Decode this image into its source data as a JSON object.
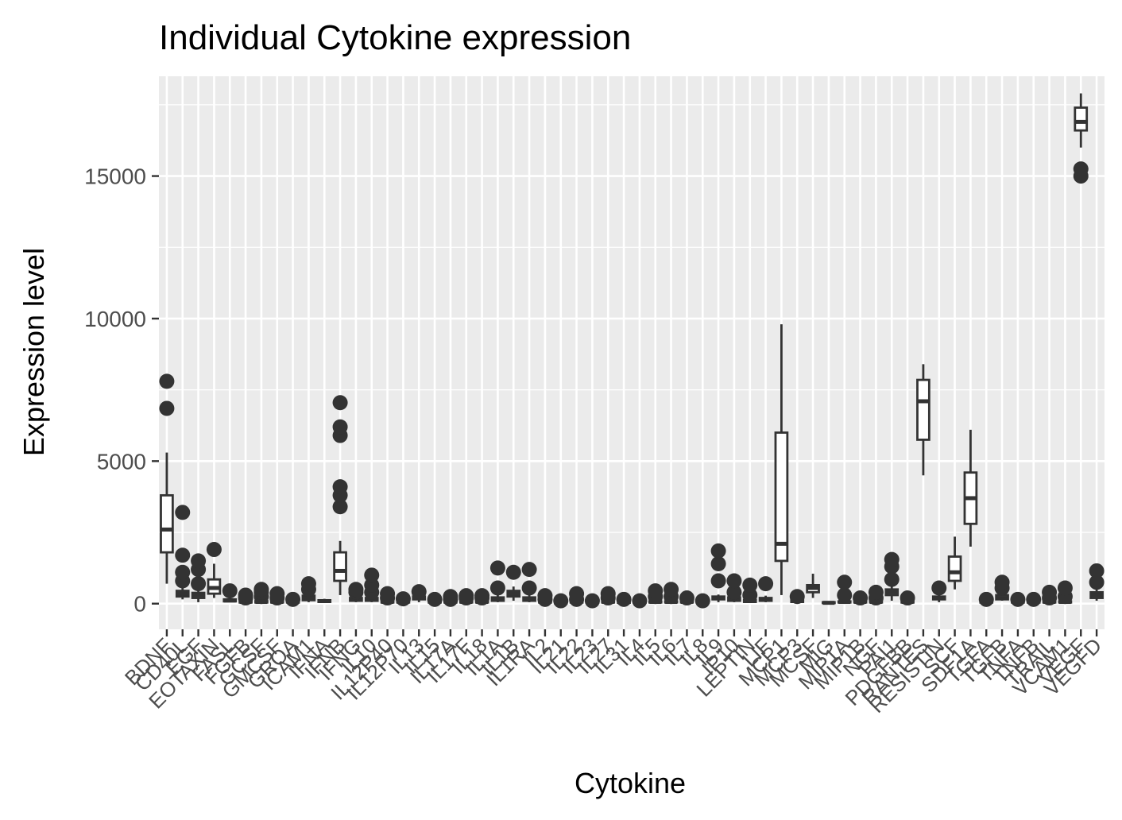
{
  "chart_data": {
    "type": "boxplot",
    "title": "Individual Cytokine expression",
    "xlabel": "Cytokine",
    "ylabel": "Expression level",
    "ylim": [
      -900,
      18500
    ],
    "yticks": [
      0,
      5000,
      10000,
      15000
    ],
    "ytick_labels": [
      "0",
      "5000",
      "10000",
      "15000"
    ],
    "grid": true,
    "panel_background": "#ebebeb",
    "grid_color": "#ffffff",
    "box_color": "#333333",
    "categories": [
      "BDNF",
      "CD40L",
      "EGF",
      "EOTAXIN",
      "FASL",
      "FGFB",
      "GCSF",
      "GMCSF",
      "GROA",
      "ICAM1",
      "IFNA",
      "IFNB",
      "IFNG",
      "IL10",
      "IL12P40",
      "IL12P70",
      "IL13",
      "IL15",
      "IL17A",
      "IL17F",
      "IL18",
      "IL1A",
      "IL1B",
      "IL1RA",
      "IL2",
      "IL21",
      "IL22",
      "IL23",
      "IL27",
      "IL31",
      "IL4",
      "IL5",
      "IL6",
      "IL7",
      "IL8",
      "IL9",
      "IP10",
      "LEPTIN",
      "LIF",
      "MCP1",
      "MCP3",
      "MCSF",
      "MIG",
      "MIP1A",
      "MIP1B",
      "NGF",
      "PAI1",
      "PDGFBB",
      "RANTES",
      "RESISTIN",
      "SCF",
      "SDF1A",
      "TGFA",
      "TGFB",
      "TNFA",
      "TNFB",
      "TRAIL",
      "VCAM1",
      "VEGF",
      "VEGFD"
    ],
    "boxes": [
      {
        "name": "BDNF",
        "whisker_low": 700,
        "q1": 1800,
        "median": 2600,
        "q3": 3800,
        "whisker_high": 5300,
        "outliers": [
          6850,
          7800
        ]
      },
      {
        "name": "CD40L",
        "whisker_low": 150,
        "q1": 250,
        "median": 350,
        "q3": 450,
        "whisker_high": 650,
        "outliers": [
          800,
          1100,
          1700,
          3200
        ]
      },
      {
        "name": "EGF",
        "whisker_low": 50,
        "q1": 200,
        "median": 300,
        "q3": 380,
        "whisker_high": 500,
        "outliers": [
          700,
          1200,
          1500
        ]
      },
      {
        "name": "EOTAXIN",
        "whisker_low": 200,
        "q1": 350,
        "median": 550,
        "q3": 850,
        "whisker_high": 1400,
        "outliers": [
          1900
        ]
      },
      {
        "name": "FASL",
        "whisker_low": 50,
        "q1": 80,
        "median": 110,
        "q3": 150,
        "whisker_high": 250,
        "outliers": [
          450
        ]
      },
      {
        "name": "FGFB",
        "whisker_low": 20,
        "q1": 40,
        "median": 60,
        "q3": 80,
        "whisker_high": 120,
        "outliers": [
          200,
          300
        ]
      },
      {
        "name": "GCSF",
        "whisker_low": 20,
        "q1": 40,
        "median": 60,
        "q3": 90,
        "whisker_high": 130,
        "outliers": [
          250,
          400,
          500
        ]
      },
      {
        "name": "GMCSF",
        "whisker_low": 20,
        "q1": 40,
        "median": 60,
        "q3": 90,
        "whisker_high": 130,
        "outliers": [
          200,
          350
        ]
      },
      {
        "name": "GROA",
        "whisker_low": 20,
        "q1": 40,
        "median": 60,
        "q3": 80,
        "whisker_high": 120,
        "outliers": [
          150
        ]
      },
      {
        "name": "ICAM1",
        "whisker_low": 50,
        "q1": 120,
        "median": 200,
        "q3": 280,
        "whisker_high": 400,
        "outliers": [
          500,
          700
        ]
      },
      {
        "name": "IFNA",
        "whisker_low": 30,
        "q1": 60,
        "median": 90,
        "q3": 120,
        "whisker_high": 170,
        "outliers": []
      },
      {
        "name": "IFNB",
        "whisker_low": 300,
        "q1": 800,
        "median": 1150,
        "q3": 1800,
        "whisker_high": 2200,
        "outliers": [
          3400,
          3800,
          4100,
          5900,
          6200,
          7050
        ]
      },
      {
        "name": "IFNG",
        "whisker_low": 50,
        "q1": 100,
        "median": 150,
        "q3": 200,
        "whisker_high": 300,
        "outliers": [
          400,
          500
        ]
      },
      {
        "name": "IL10",
        "whisker_low": 50,
        "q1": 100,
        "median": 150,
        "q3": 200,
        "whisker_high": 300,
        "outliers": [
          400,
          650,
          1000
        ]
      },
      {
        "name": "IL12P40",
        "whisker_low": 20,
        "q1": 40,
        "median": 60,
        "q3": 90,
        "whisker_high": 130,
        "outliers": [
          200,
          350
        ]
      },
      {
        "name": "IL12P70",
        "whisker_low": 20,
        "q1": 40,
        "median": 60,
        "q3": 80,
        "whisker_high": 110,
        "outliers": [
          170
        ]
      },
      {
        "name": "IL13",
        "whisker_low": 50,
        "q1": 150,
        "median": 200,
        "q3": 250,
        "whisker_high": 320,
        "outliers": [
          420
        ]
      },
      {
        "name": "IL15",
        "whisker_low": 20,
        "q1": 40,
        "median": 60,
        "q3": 80,
        "whisker_high": 110,
        "outliers": [
          150
        ]
      },
      {
        "name": "IL17A",
        "whisker_low": 20,
        "q1": 40,
        "median": 60,
        "q3": 80,
        "whisker_high": 110,
        "outliers": [
          150,
          250
        ]
      },
      {
        "name": "IL17F",
        "whisker_low": 20,
        "q1": 40,
        "median": 60,
        "q3": 80,
        "whisker_high": 110,
        "outliers": [
          200,
          280
        ]
      },
      {
        "name": "IL18",
        "whisker_low": 20,
        "q1": 40,
        "median": 60,
        "q3": 80,
        "whisker_high": 110,
        "outliers": [
          200,
          280
        ]
      },
      {
        "name": "IL1A",
        "whisker_low": 50,
        "q1": 100,
        "median": 150,
        "q3": 220,
        "whisker_high": 300,
        "outliers": [
          550,
          1250
        ]
      },
      {
        "name": "IL1B",
        "whisker_low": 100,
        "q1": 250,
        "median": 350,
        "q3": 450,
        "whisker_high": 600,
        "outliers": [
          1100
        ]
      },
      {
        "name": "IL1RA",
        "whisker_low": 50,
        "q1": 100,
        "median": 150,
        "q3": 220,
        "whisker_high": 300,
        "outliers": [
          550,
          1200
        ]
      },
      {
        "name": "IL2",
        "whisker_low": 20,
        "q1": 40,
        "median": 60,
        "q3": 80,
        "whisker_high": 110,
        "outliers": [
          150,
          280
        ]
      },
      {
        "name": "IL21",
        "whisker_low": 10,
        "q1": 20,
        "median": 30,
        "q3": 40,
        "whisker_high": 60,
        "outliers": [
          100
        ]
      },
      {
        "name": "IL22",
        "whisker_low": 20,
        "q1": 40,
        "median": 60,
        "q3": 80,
        "whisker_high": 110,
        "outliers": [
          150,
          350
        ]
      },
      {
        "name": "IL23",
        "whisker_low": 20,
        "q1": 30,
        "median": 40,
        "q3": 60,
        "whisker_high": 80,
        "outliers": [
          100
        ]
      },
      {
        "name": "IL27",
        "whisker_low": 20,
        "q1": 40,
        "median": 60,
        "q3": 80,
        "whisker_high": 110,
        "outliers": [
          200,
          350
        ]
      },
      {
        "name": "IL31",
        "whisker_low": 20,
        "q1": 30,
        "median": 40,
        "q3": 60,
        "whisker_high": 80,
        "outliers": [
          150
        ]
      },
      {
        "name": "IL4",
        "whisker_low": 20,
        "q1": 30,
        "median": 40,
        "q3": 60,
        "whisker_high": 80,
        "outliers": [
          100
        ]
      },
      {
        "name": "IL5",
        "whisker_low": 20,
        "q1": 40,
        "median": 60,
        "q3": 80,
        "whisker_high": 110,
        "outliers": [
          250,
          450
        ]
      },
      {
        "name": "IL6",
        "whisker_low": 20,
        "q1": 40,
        "median": 60,
        "q3": 80,
        "whisker_high": 110,
        "outliers": [
          250,
          500
        ]
      },
      {
        "name": "IL7",
        "whisker_low": 20,
        "q1": 40,
        "median": 60,
        "q3": 80,
        "whisker_high": 110,
        "outliers": [
          200
        ]
      },
      {
        "name": "IL8",
        "whisker_low": 20,
        "q1": 30,
        "median": 40,
        "q3": 60,
        "whisker_high": 80,
        "outliers": [
          100
        ]
      },
      {
        "name": "IL9",
        "whisker_low": 50,
        "q1": 150,
        "median": 200,
        "q3": 250,
        "whisker_high": 320,
        "outliers": [
          800,
          1400,
          1850
        ]
      },
      {
        "name": "IP10",
        "whisker_low": 50,
        "q1": 100,
        "median": 150,
        "q3": 220,
        "whisker_high": 300,
        "outliers": [
          400,
          800
        ]
      },
      {
        "name": "LEPTIN",
        "whisker_low": 30,
        "q1": 60,
        "median": 90,
        "q3": 130,
        "whisker_high": 180,
        "outliers": [
          300,
          650
        ]
      },
      {
        "name": "LIF",
        "whisker_low": 50,
        "q1": 100,
        "median": 150,
        "q3": 200,
        "whisker_high": 280,
        "outliers": [
          700
        ]
      },
      {
        "name": "MCP1",
        "whisker_low": 300,
        "q1": 1500,
        "median": 2100,
        "q3": 6000,
        "whisker_high": 9800,
        "outliers": []
      },
      {
        "name": "MCP3",
        "whisker_low": 30,
        "q1": 60,
        "median": 90,
        "q3": 130,
        "whisker_high": 180,
        "outliers": [
          250
        ]
      },
      {
        "name": "MCSF",
        "whisker_low": 200,
        "q1": 400,
        "median": 550,
        "q3": 650,
        "whisker_high": 1050,
        "outliers": []
      },
      {
        "name": "MIG",
        "whisker_low": 10,
        "q1": 20,
        "median": 30,
        "q3": 50,
        "whisker_high": 80,
        "outliers": []
      },
      {
        "name": "MIP1A",
        "whisker_low": 20,
        "q1": 40,
        "median": 60,
        "q3": 80,
        "whisker_high": 110,
        "outliers": [
          300,
          750
        ]
      },
      {
        "name": "MIP1B",
        "whisker_low": 20,
        "q1": 40,
        "median": 60,
        "q3": 80,
        "whisker_high": 110,
        "outliers": [
          200
        ]
      },
      {
        "name": "NGF",
        "whisker_low": 20,
        "q1": 40,
        "median": 60,
        "q3": 80,
        "whisker_high": 110,
        "outliers": [
          200,
          400
        ]
      },
      {
        "name": "PAI1",
        "whisker_low": 100,
        "q1": 300,
        "median": 400,
        "q3": 500,
        "whisker_high": 650,
        "outliers": [
          850,
          1300,
          1550
        ]
      },
      {
        "name": "PDGFBB",
        "whisker_low": 20,
        "q1": 40,
        "median": 60,
        "q3": 80,
        "whisker_high": 110,
        "outliers": [
          200
        ]
      },
      {
        "name": "RANTES",
        "whisker_low": 4500,
        "q1": 5750,
        "median": 7100,
        "q3": 7850,
        "whisker_high": 8400,
        "outliers": []
      },
      {
        "name": "RESISTIN",
        "whisker_low": 50,
        "q1": 150,
        "median": 200,
        "q3": 250,
        "whisker_high": 320,
        "outliers": [
          550
        ]
      },
      {
        "name": "SCF",
        "whisker_low": 500,
        "q1": 800,
        "median": 1100,
        "q3": 1650,
        "whisker_high": 2350,
        "outliers": []
      },
      {
        "name": "SDF1A",
        "whisker_low": 2000,
        "q1": 2800,
        "median": 3700,
        "q3": 4600,
        "whisker_high": 6100,
        "outliers": []
      },
      {
        "name": "TGFA",
        "whisker_low": 20,
        "q1": 40,
        "median": 60,
        "q3": 80,
        "whisker_high": 110,
        "outliers": [
          150
        ]
      },
      {
        "name": "TGFB",
        "whisker_low": 100,
        "q1": 150,
        "median": 200,
        "q3": 300,
        "whisker_high": 400,
        "outliers": [
          550,
          750
        ]
      },
      {
        "name": "TNFA",
        "whisker_low": 20,
        "q1": 40,
        "median": 60,
        "q3": 80,
        "whisker_high": 110,
        "outliers": [
          150
        ]
      },
      {
        "name": "TNFB",
        "whisker_low": 20,
        "q1": 40,
        "median": 60,
        "q3": 80,
        "whisker_high": 110,
        "outliers": [
          150
        ]
      },
      {
        "name": "TRAIL",
        "whisker_low": 20,
        "q1": 40,
        "median": 60,
        "q3": 80,
        "whisker_high": 110,
        "outliers": [
          200,
          400
        ]
      },
      {
        "name": "VCAM1",
        "whisker_low": 20,
        "q1": 40,
        "median": 60,
        "q3": 80,
        "whisker_high": 110,
        "outliers": [
          250,
          550
        ]
      },
      {
        "name": "VEGF",
        "whisker_low": 16000,
        "q1": 16600,
        "median": 16900,
        "q3": 17400,
        "whisker_high": 17900,
        "outliers": [
          15000,
          15250
        ]
      },
      {
        "name": "VEGFD",
        "whisker_low": 100,
        "q1": 200,
        "median": 300,
        "q3": 400,
        "whisker_high": 500,
        "outliers": [
          750,
          1150
        ]
      }
    ]
  }
}
